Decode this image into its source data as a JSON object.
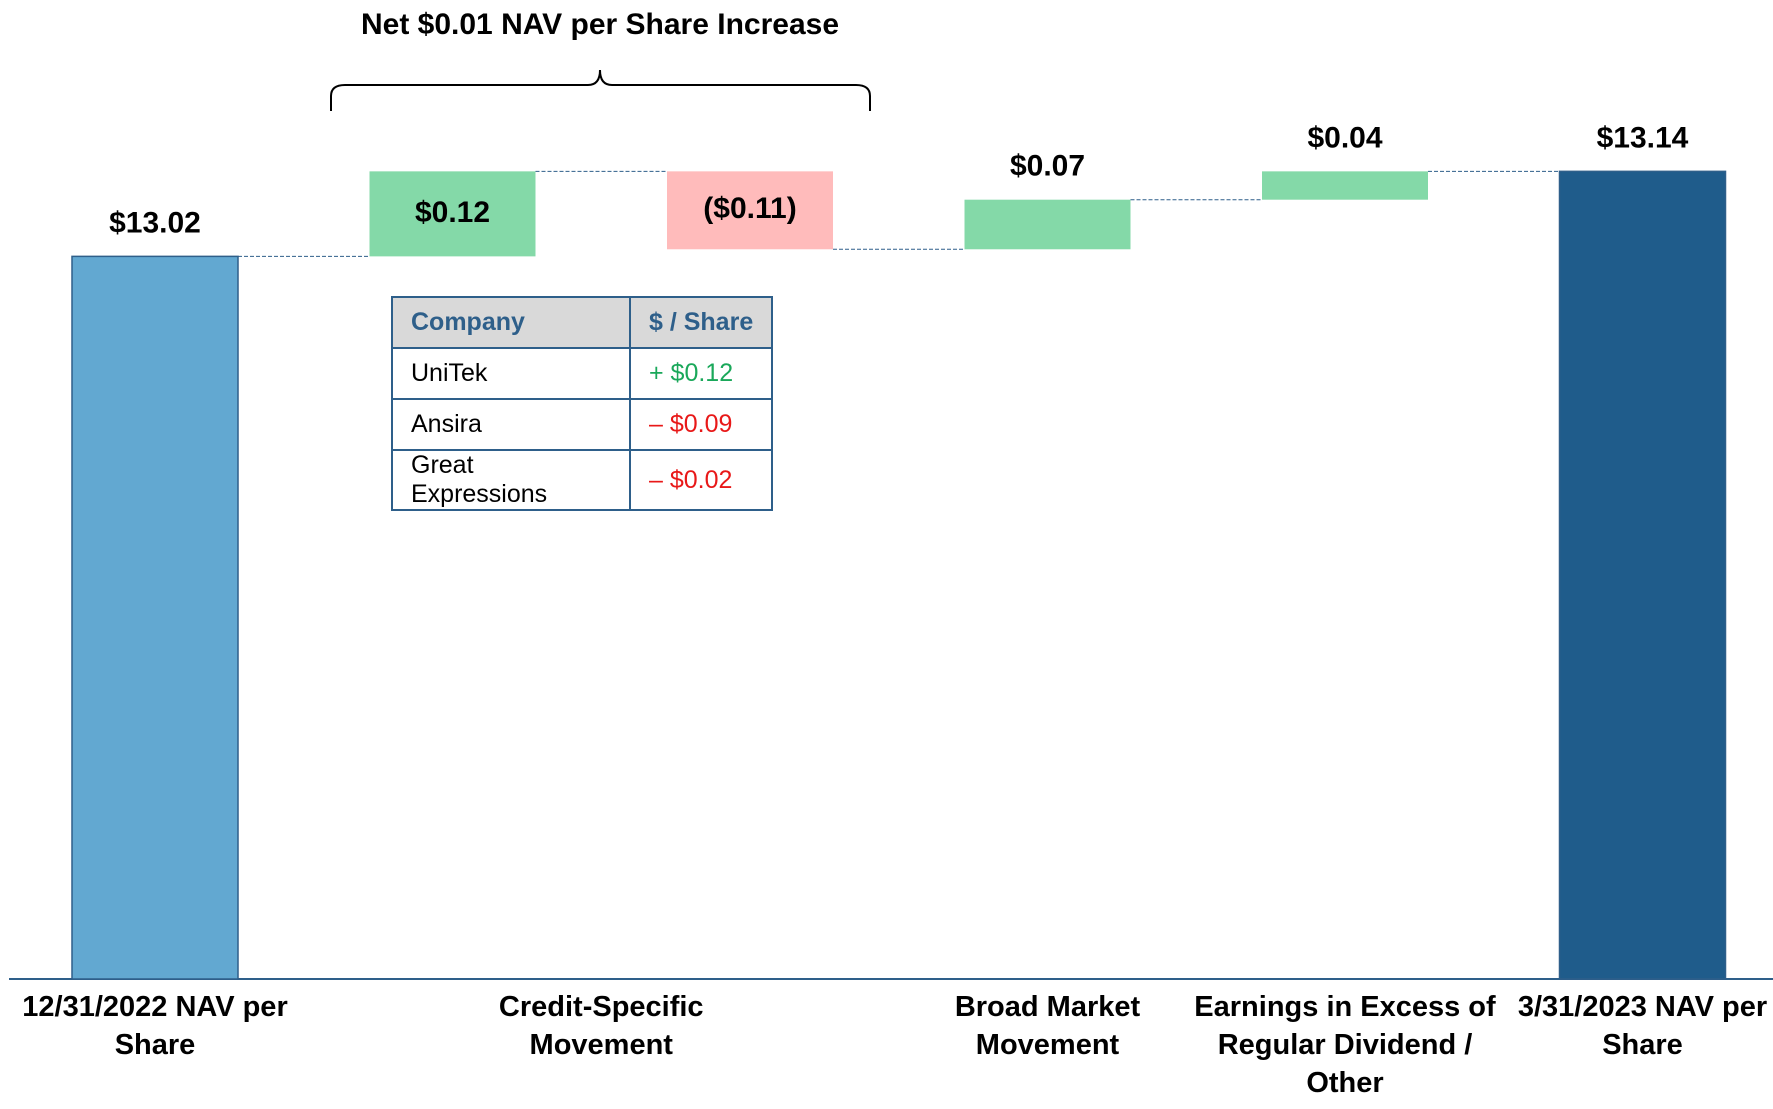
{
  "chart_data": {
    "type": "waterfall",
    "title": "Net $0.01 NAV per Share Increase",
    "categories": [
      "12/31/2022 NAV per Share",
      "Credit-Specific Movement",
      null,
      "Broad Market Movement",
      "Earnings in Excess of Regular Dividend / Other",
      "3/31/2023 NAV per Share"
    ],
    "values": [
      13.02,
      0.12,
      -0.11,
      0.07,
      0.04,
      13.14
    ],
    "value_labels": [
      "$13.02",
      "$0.12",
      "($0.11)",
      "$0.07",
      "$0.04",
      "$13.14"
    ],
    "measures": [
      "absolute",
      "relative",
      "relative",
      "relative",
      "relative",
      "total"
    ],
    "colors": [
      "#62a8d1",
      "#84d9a8",
      "#ffbbbb",
      "#84d9a8",
      "#84d9a8",
      "#1f5c8b"
    ],
    "ylim": [
      12,
      13.3
    ],
    "table": {
      "header": [
        "Company",
        "$ / Share"
      ],
      "rows": [
        [
          "UniTek",
          "+ $0.12"
        ],
        [
          "Ansira",
          "– $0.09"
        ],
        [
          "Great Expressions",
          "– $0.02"
        ]
      ],
      "value_colors": [
        "#1aa85a",
        "#e81818",
        "#e81818"
      ]
    }
  }
}
